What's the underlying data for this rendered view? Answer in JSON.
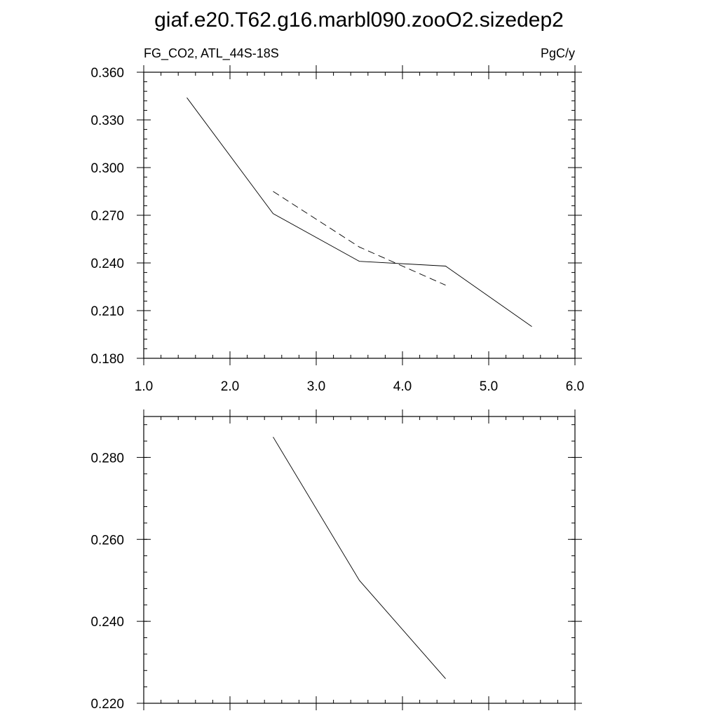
{
  "figure": {
    "title": "giaf.e20.T62.g16.marbl090.zooO2.sizedep2"
  },
  "chart_data": [
    {
      "type": "line",
      "title": "",
      "left_label": "FG_CO2, ATL_44S-18S",
      "right_label": "PgC/y",
      "xlim": [
        1.0,
        6.0
      ],
      "ylim": [
        0.18,
        0.36
      ],
      "x_ticks": [
        1.0,
        2.0,
        3.0,
        4.0,
        5.0,
        6.0
      ],
      "x_tick_labels": [
        "1.0",
        "2.0",
        "3.0",
        "4.0",
        "5.0",
        "6.0"
      ],
      "x_minor_step": 0.2,
      "y_ticks": [
        0.18,
        0.21,
        0.24,
        0.27,
        0.3,
        0.33,
        0.36
      ],
      "y_tick_labels": [
        "0.180",
        "0.210",
        "0.240",
        "0.270",
        "0.300",
        "0.330",
        "0.360"
      ],
      "y_minor_step": 0.006,
      "grid": false,
      "series": [
        {
          "style": "solid",
          "x": [
            1.5,
            2.5,
            3.5,
            4.5,
            5.5
          ],
          "y": [
            0.344,
            0.271,
            0.241,
            0.238,
            0.2
          ]
        },
        {
          "style": "dashed",
          "x": [
            2.5,
            3.5,
            4.5
          ],
          "y": [
            0.285,
            0.25,
            0.226
          ]
        }
      ]
    },
    {
      "type": "line",
      "title": "",
      "xlim": [
        1.0,
        6.0
      ],
      "ylim": [
        0.22,
        0.29
      ],
      "x_ticks": [
        1.0,
        2.0,
        3.0,
        4.0,
        5.0,
        6.0
      ],
      "x_tick_labels": [],
      "x_minor_step": 0.2,
      "y_ticks": [
        0.22,
        0.24,
        0.26,
        0.28
      ],
      "y_tick_labels": [
        "0.220",
        "0.240",
        "0.260",
        "0.280"
      ],
      "y_minor_step": 0.004,
      "grid": false,
      "series": [
        {
          "style": "solid",
          "x": [
            2.5,
            3.5,
            4.5
          ],
          "y": [
            0.285,
            0.25,
            0.226
          ]
        }
      ]
    }
  ]
}
